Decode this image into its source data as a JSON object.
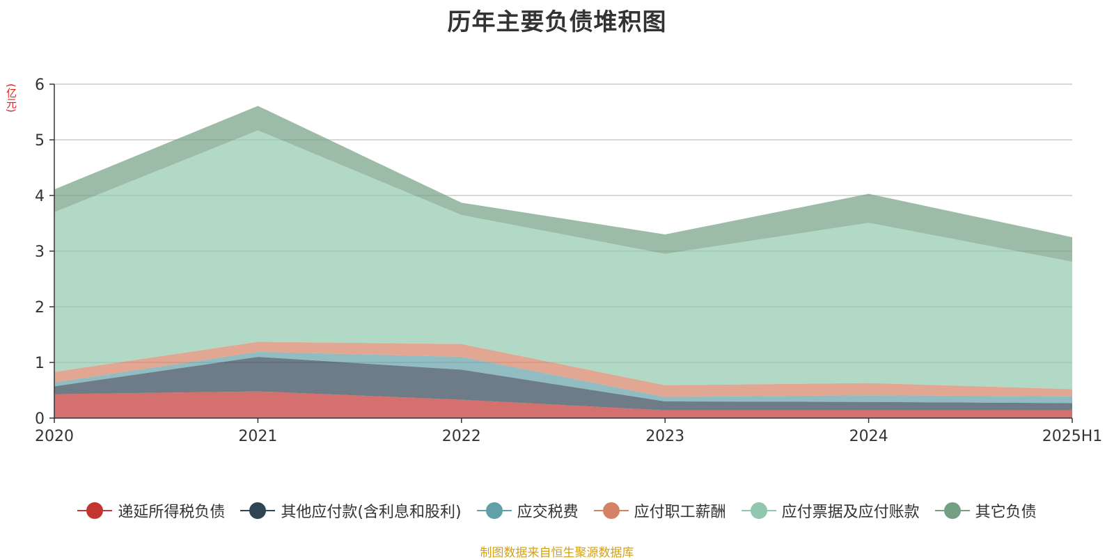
{
  "chart_data": {
    "type": "area",
    "stacked": true,
    "title": "历年主要负债堆积图",
    "unit_label": "(亿元)",
    "categories": [
      "2020",
      "2021",
      "2022",
      "2023",
      "2024",
      "2025H1"
    ],
    "ylim": [
      0,
      6
    ],
    "y_ticks": [
      "0",
      "1",
      "2",
      "3",
      "4",
      "5",
      "6"
    ],
    "grid": true,
    "legend_position": "bottom",
    "series": [
      {
        "name": "递延所得税负债",
        "color": "#c23531",
        "values": [
          0.43,
          0.48,
          0.33,
          0.14,
          0.14,
          0.14
        ]
      },
      {
        "name": "其他应付款(含利息和股利)",
        "color": "#2f4554",
        "values": [
          0.14,
          0.62,
          0.54,
          0.16,
          0.15,
          0.13
        ]
      },
      {
        "name": "应交税费",
        "color": "#61a0a8",
        "values": [
          0.07,
          0.09,
          0.23,
          0.08,
          0.12,
          0.12
        ]
      },
      {
        "name": "应付职工薪酬",
        "color": "#d48265",
        "values": [
          0.19,
          0.18,
          0.23,
          0.21,
          0.22,
          0.13
        ]
      },
      {
        "name": "应付票据及应付账款",
        "color": "#91c7ae",
        "values": [
          2.87,
          3.8,
          2.32,
          2.36,
          2.88,
          2.29
        ]
      },
      {
        "name": "其它负债",
        "color": "#749f83",
        "values": [
          0.41,
          0.44,
          0.22,
          0.35,
          0.52,
          0.44
        ]
      }
    ]
  },
  "source_note": "制图数据来自恒生聚源数据库"
}
